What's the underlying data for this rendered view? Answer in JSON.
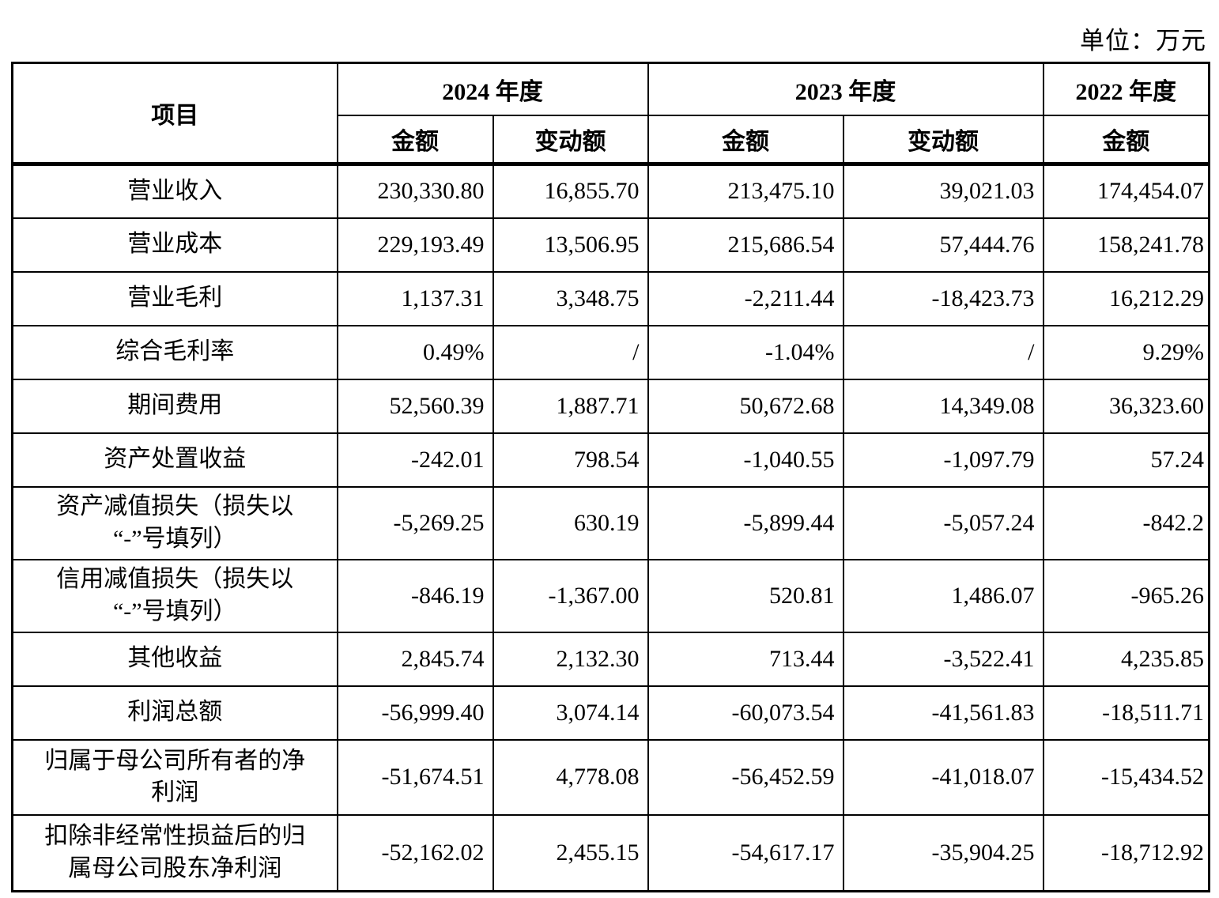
{
  "unit_label": "单位：万元",
  "table": {
    "item_header": "项目",
    "year_groups": [
      {
        "label": "2024 年度",
        "subcols": [
          "金额",
          "变动额"
        ]
      },
      {
        "label": "2023 年度",
        "subcols": [
          "金额",
          "变动额"
        ]
      },
      {
        "label": "2022 年度",
        "subcols": [
          "金额"
        ]
      }
    ],
    "rows": [
      {
        "item": "营业收入",
        "v": [
          "230,330.80",
          "16,855.70",
          "213,475.10",
          "39,021.03",
          "174,454.07"
        ]
      },
      {
        "item": "营业成本",
        "v": [
          "229,193.49",
          "13,506.95",
          "215,686.54",
          "57,444.76",
          "158,241.78"
        ]
      },
      {
        "item": "营业毛利",
        "v": [
          "1,137.31",
          "3,348.75",
          "-2,211.44",
          "-18,423.73",
          "16,212.29"
        ]
      },
      {
        "item": "综合毛利率",
        "v": [
          "0.49%",
          "/",
          "-1.04%",
          "/",
          "9.29%"
        ]
      },
      {
        "item": "期间费用",
        "v": [
          "52,560.39",
          "1,887.71",
          "50,672.68",
          "14,349.08",
          "36,323.60"
        ]
      },
      {
        "item": "资产处置收益",
        "v": [
          "-242.01",
          "798.54",
          "-1,040.55",
          "-1,097.79",
          "57.24"
        ]
      },
      {
        "item": "资产减值损失（损失以\n“-”号填列）",
        "v": [
          "-5,269.25",
          "630.19",
          "-5,899.44",
          "-5,057.24",
          "-842.2"
        ]
      },
      {
        "item": "信用减值损失（损失以\n“-”号填列）",
        "v": [
          "-846.19",
          "-1,367.00",
          "520.81",
          "1,486.07",
          "-965.26"
        ]
      },
      {
        "item": "其他收益",
        "v": [
          "2,845.74",
          "2,132.30",
          "713.44",
          "-3,522.41",
          "4,235.85"
        ]
      },
      {
        "item": "利润总额",
        "v": [
          "-56,999.40",
          "3,074.14",
          "-60,073.54",
          "-41,561.83",
          "-18,511.71"
        ]
      },
      {
        "item": "归属于母公司所有者的净\n利润",
        "v": [
          "-51,674.51",
          "4,778.08",
          "-56,452.59",
          "-41,018.07",
          "-15,434.52"
        ]
      },
      {
        "item": "扣除非经常性损益后的归\n属母公司股东净利润",
        "v": [
          "-52,162.02",
          "2,455.15",
          "-54,617.17",
          "-35,904.25",
          "-18,712.92"
        ]
      }
    ]
  }
}
